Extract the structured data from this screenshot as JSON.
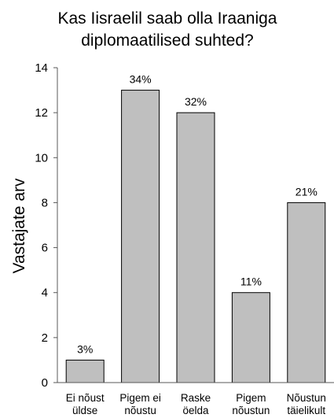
{
  "chart_data": {
    "type": "bar",
    "title_lines": [
      "Kas Iisraelil saab olla Iraaniga",
      "diplomaatilised suhted?"
    ],
    "ylabel": "Vastajate arv",
    "xlabel": "",
    "ylim": [
      0,
      14
    ],
    "yticks": [
      0,
      2,
      4,
      6,
      8,
      10,
      12,
      14
    ],
    "grid": false,
    "legend": "none",
    "bar_color": "#bfbfbf",
    "categories": [
      [
        "Ei nõust",
        "üldse"
      ],
      [
        "Pigem ei",
        "nõustu"
      ],
      [
        "Raske",
        "öelda"
      ],
      [
        "Pigem",
        "nõustun"
      ],
      [
        "Nõustun",
        "täielikult"
      ]
    ],
    "values": [
      1,
      13,
      12,
      4,
      8
    ],
    "data_labels": [
      "3%",
      "34%",
      "32%",
      "11%",
      "21%"
    ]
  }
}
